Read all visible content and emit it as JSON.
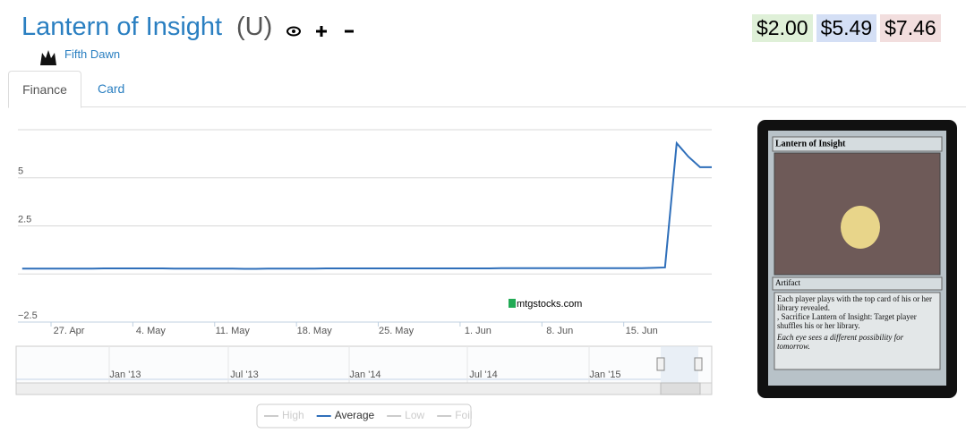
{
  "header": {
    "title": "Lantern of Insight",
    "rarity": "(U)",
    "set": "Fifth Dawn",
    "prices": [
      "$2.00",
      "$5.49",
      "$7.46"
    ]
  },
  "tabs": [
    "Finance",
    "Card"
  ],
  "chart_data": {
    "type": "line",
    "categories": [
      null,
      null,
      null,
      null,
      "27. Apr",
      null,
      null,
      null,
      null,
      null,
      null,
      "4. May",
      null,
      null,
      null,
      null,
      null,
      null,
      "11. May",
      null,
      null,
      null,
      null,
      null,
      null,
      "18. May",
      null,
      null,
      null,
      null,
      null,
      null,
      "25. May",
      null,
      null,
      null,
      null,
      null,
      null,
      "1. Jun",
      null,
      null,
      null,
      null,
      null,
      null,
      "8. Jun",
      null,
      null,
      null,
      null,
      null,
      null,
      "15. Jun",
      null,
      null,
      null,
      null,
      null,
      null
    ],
    "series": [
      {
        "color": "#2f6fba",
        "values": [
          0.28,
          0.28,
          0.28,
          0.28,
          0.28,
          0.28,
          0.28,
          0.29,
          0.29,
          0.29,
          0.29,
          0.29,
          0.29,
          0.28,
          0.28,
          0.28,
          0.28,
          0.28,
          0.28,
          0.27,
          0.27,
          0.28,
          0.28,
          0.28,
          0.28,
          0.28,
          0.29,
          0.29,
          0.29,
          0.29,
          0.29,
          0.29,
          0.29,
          0.29,
          0.29,
          0.29,
          0.29,
          0.29,
          0.29,
          0.29,
          0.29,
          0.3,
          0.3,
          0.3,
          0.3,
          0.3,
          0.3,
          0.3,
          0.3,
          0.3,
          0.3,
          0.3,
          0.3,
          0.3,
          0.32,
          0.34,
          6.8,
          6.1,
          5.55,
          5.55
        ]
      }
    ],
    "ylim": [
      -2.5,
      7.5
    ],
    "yticks": [
      {
        "value": -2.5,
        "label": "−2.5"
      },
      2.5,
      5
    ],
    "ygrid": [
      -2.5,
      0,
      2.5,
      5,
      7.5
    ],
    "grid": true,
    "watermark": "mtgstocks.com",
    "navigator_labels": [
      "Jan '13",
      "Jul '13",
      "Jan '14",
      "Jul '14",
      "Jan '15"
    ],
    "legend": [
      "High",
      "Average",
      "Low",
      "Foil"
    ],
    "legend_active": 1
  },
  "card": {
    "name": "Lantern of Insight",
    "type_line": "Artifact",
    "rules": [
      "Each player plays with the top card of his or her library revealed.",
      ", Sacrifice Lantern of Insight: Target player shuffles his or her library."
    ],
    "flavor": "Each eye sees a different possibility for tomorrow."
  }
}
